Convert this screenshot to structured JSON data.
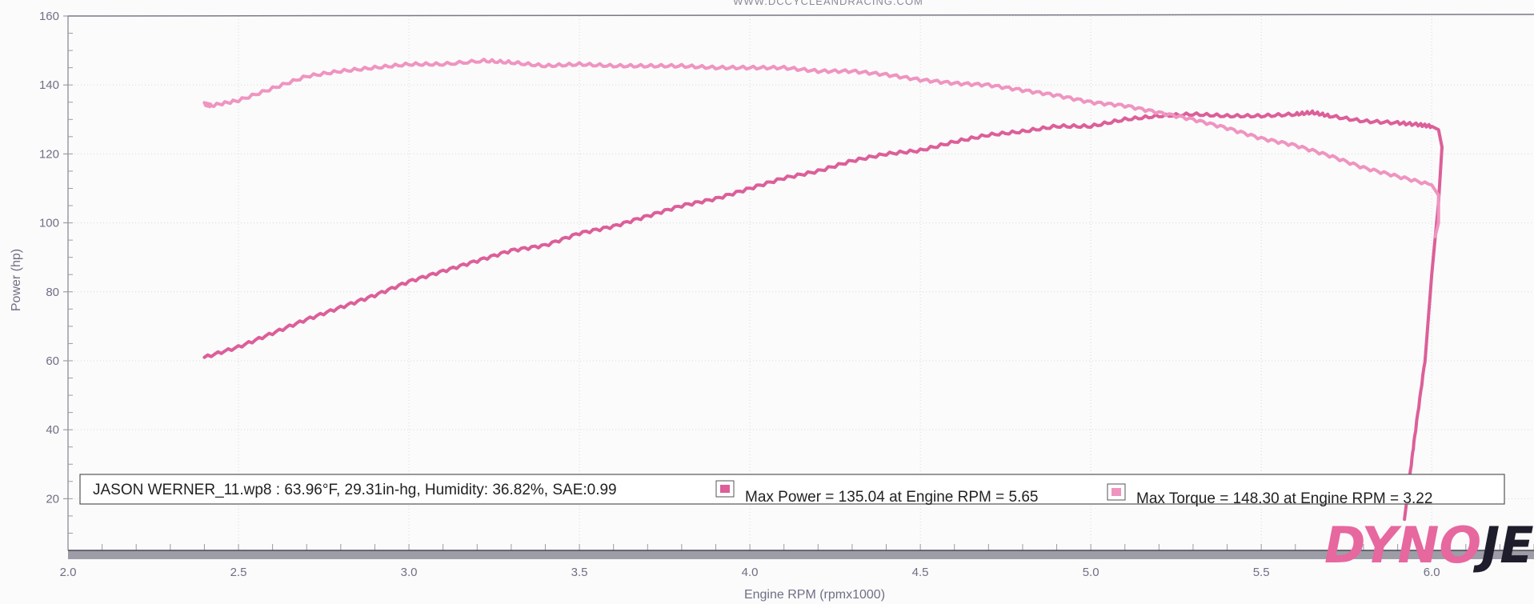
{
  "header_url": "WWW.DCCYCLEANDRACING.COM",
  "brand": {
    "part1": "DYNO",
    "part2": "JET",
    "part1_color": "#e7679f",
    "part2_color": "#1d1d2b"
  },
  "chart_data": {
    "type": "line",
    "title": "",
    "xlabel": "Engine RPM (rpmx1000)",
    "ylabel": "Power (hp)",
    "xlim": [
      2.0,
      6.3
    ],
    "ylim": [
      5,
      160
    ],
    "x_ticks": [
      "2.0",
      "2.5",
      "3.0",
      "3.5",
      "4.0",
      "4.5",
      "5.0",
      "5.5",
      "6.0"
    ],
    "y_ticks": [
      "20",
      "40",
      "60",
      "80",
      "100",
      "120",
      "140",
      "160"
    ],
    "grid": true,
    "legend_placement": "bottom",
    "run_info": "JASON WERNER_11.wp8 : 63.96°F, 29.31in-hg, Humidity: 36.82%, SAE:0.99",
    "series": [
      {
        "name": "Max Power = 135.04 at Engine RPM = 5.65",
        "color": "#dc5f99",
        "points": [
          [
            2.4,
            61
          ],
          [
            2.5,
            64
          ],
          [
            2.6,
            68
          ],
          [
            2.7,
            72
          ],
          [
            2.8,
            75.5
          ],
          [
            2.9,
            79
          ],
          [
            3.0,
            83
          ],
          [
            3.1,
            86
          ],
          [
            3.2,
            89
          ],
          [
            3.3,
            92
          ],
          [
            3.4,
            93.5
          ],
          [
            3.5,
            97
          ],
          [
            3.6,
            99
          ],
          [
            3.7,
            102
          ],
          [
            3.8,
            105
          ],
          [
            3.9,
            107
          ],
          [
            4.0,
            110
          ],
          [
            4.1,
            113
          ],
          [
            4.2,
            115
          ],
          [
            4.3,
            118
          ],
          [
            4.4,
            120
          ],
          [
            4.5,
            121
          ],
          [
            4.6,
            123.5
          ],
          [
            4.7,
            125.5
          ],
          [
            4.8,
            126.5
          ],
          [
            4.9,
            128
          ],
          [
            5.0,
            128
          ],
          [
            5.1,
            130
          ],
          [
            5.2,
            131
          ],
          [
            5.3,
            131.5
          ],
          [
            5.4,
            131
          ],
          [
            5.5,
            131
          ],
          [
            5.6,
            131.5
          ],
          [
            5.65,
            132
          ],
          [
            5.7,
            131
          ],
          [
            5.8,
            129.5
          ],
          [
            5.9,
            129
          ],
          [
            5.96,
            128.5
          ],
          [
            6.0,
            128
          ],
          [
            6.02,
            127
          ],
          [
            6.03,
            122
          ],
          [
            6.02,
            106
          ],
          [
            6.0,
            85
          ],
          [
            5.98,
            60
          ],
          [
            5.95,
            38
          ],
          [
            5.93,
            22
          ],
          [
            5.92,
            14
          ]
        ]
      },
      {
        "name": "Max Torque = 148.30 at Engine RPM = 3.22",
        "color": "#ef94c0",
        "points": [
          [
            2.4,
            134.5
          ],
          [
            2.42,
            134
          ],
          [
            2.5,
            135.5
          ],
          [
            2.6,
            139
          ],
          [
            2.7,
            142.5
          ],
          [
            2.8,
            144
          ],
          [
            2.9,
            145
          ],
          [
            3.0,
            146
          ],
          [
            3.1,
            146
          ],
          [
            3.22,
            147
          ],
          [
            3.3,
            146.5
          ],
          [
            3.4,
            145.5
          ],
          [
            3.5,
            146
          ],
          [
            3.6,
            145.5
          ],
          [
            3.7,
            145.5
          ],
          [
            3.8,
            145.5
          ],
          [
            3.9,
            145
          ],
          [
            4.0,
            145
          ],
          [
            4.1,
            145
          ],
          [
            4.2,
            144
          ],
          [
            4.3,
            144
          ],
          [
            4.4,
            143
          ],
          [
            4.5,
            141.5
          ],
          [
            4.6,
            140.5
          ],
          [
            4.7,
            140
          ],
          [
            4.8,
            138.5
          ],
          [
            4.9,
            137
          ],
          [
            5.0,
            135
          ],
          [
            5.1,
            134
          ],
          [
            5.2,
            132
          ],
          [
            5.3,
            130
          ],
          [
            5.4,
            127.5
          ],
          [
            5.5,
            124.5
          ],
          [
            5.6,
            122.5
          ],
          [
            5.7,
            119.5
          ],
          [
            5.8,
            116
          ],
          [
            5.9,
            113.5
          ],
          [
            6.0,
            111
          ],
          [
            6.02,
            108
          ],
          [
            6.02,
            100
          ],
          [
            6.01,
            96
          ]
        ]
      }
    ]
  }
}
